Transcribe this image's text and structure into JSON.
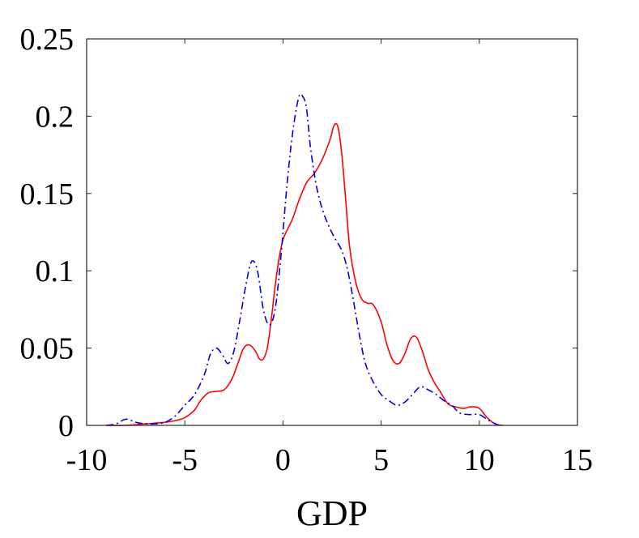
{
  "chart_data": {
    "type": "line",
    "title": "",
    "xlabel": "GDP",
    "ylabel": "",
    "xlim": [
      -10,
      15
    ],
    "ylim": [
      0,
      0.25
    ],
    "xticks": [
      -10,
      -5,
      0,
      5,
      10,
      15
    ],
    "yticks": [
      0,
      0.05,
      0.1,
      0.15,
      0.2,
      0.25
    ],
    "xtick_labels": [
      "-10",
      "-5",
      "0",
      "5",
      "10",
      "15"
    ],
    "ytick_labels": [
      "0",
      "0.05",
      "0.1",
      "0.15",
      "0.2",
      "0.25"
    ],
    "grid": false,
    "legend": "none",
    "series": [
      {
        "color": "#ff0000",
        "style": "solid",
        "x": [
          -9.0,
          -8.0,
          -7.0,
          -6.0,
          -5.5,
          -5.0,
          -4.5,
          -4.2,
          -3.8,
          -3.4,
          -3.0,
          -2.6,
          -2.3,
          -2.0,
          -1.7,
          -1.4,
          -1.2,
          -1.0,
          -0.8,
          -0.6,
          -0.4,
          -0.2,
          0.0,
          0.2,
          0.5,
          0.8,
          1.2,
          1.6,
          2.0,
          2.4,
          2.6,
          2.8,
          3.0,
          3.2,
          3.4,
          3.7,
          4.0,
          4.3,
          4.6,
          5.0,
          5.3,
          5.6,
          5.9,
          6.2,
          6.5,
          6.8,
          7.1,
          7.4,
          7.7,
          8.0,
          8.4,
          8.8,
          9.2,
          9.6,
          10.0,
          10.4,
          10.8,
          11.2
        ],
        "y": [
          0.0,
          0.0,
          0.001,
          0.002,
          0.003,
          0.005,
          0.01,
          0.016,
          0.021,
          0.022,
          0.023,
          0.03,
          0.04,
          0.05,
          0.052,
          0.048,
          0.043,
          0.043,
          0.05,
          0.068,
          0.09,
          0.108,
          0.12,
          0.126,
          0.134,
          0.145,
          0.157,
          0.163,
          0.172,
          0.185,
          0.194,
          0.193,
          0.175,
          0.145,
          0.115,
          0.093,
          0.082,
          0.079,
          0.078,
          0.067,
          0.052,
          0.042,
          0.04,
          0.046,
          0.056,
          0.057,
          0.048,
          0.036,
          0.028,
          0.022,
          0.014,
          0.012,
          0.011,
          0.012,
          0.011,
          0.005,
          0.001,
          0.0
        ]
      },
      {
        "color": "#0000e6",
        "style": "dash-dot",
        "x": [
          -9.0,
          -8.5,
          -8.0,
          -7.5,
          -7.0,
          -6.5,
          -6.0,
          -5.5,
          -5.0,
          -4.5,
          -4.0,
          -3.7,
          -3.4,
          -3.1,
          -2.8,
          -2.5,
          -2.2,
          -1.9,
          -1.6,
          -1.3,
          -1.0,
          -0.7,
          -0.4,
          -0.1,
          0.2,
          0.5,
          0.8,
          1.0,
          1.2,
          1.4,
          1.7,
          2.0,
          2.3,
          2.6,
          3.0,
          3.3,
          3.6,
          3.9,
          4.2,
          4.6,
          5.0,
          5.4,
          5.8,
          6.2,
          6.6,
          7.0,
          7.4,
          7.8,
          8.2,
          8.6,
          9.0,
          9.5,
          10.0,
          10.5,
          11.0
        ],
        "y": [
          0.0,
          0.001,
          0.004,
          0.002,
          0.001,
          0.001,
          0.002,
          0.006,
          0.013,
          0.02,
          0.033,
          0.046,
          0.05,
          0.046,
          0.04,
          0.048,
          0.068,
          0.09,
          0.106,
          0.1,
          0.075,
          0.065,
          0.075,
          0.11,
          0.155,
          0.19,
          0.212,
          0.213,
          0.205,
          0.18,
          0.155,
          0.14,
          0.13,
          0.122,
          0.113,
          0.1,
          0.08,
          0.058,
          0.04,
          0.028,
          0.02,
          0.016,
          0.013,
          0.015,
          0.02,
          0.025,
          0.023,
          0.02,
          0.016,
          0.013,
          0.008,
          0.007,
          0.007,
          0.003,
          0.0
        ]
      }
    ]
  }
}
